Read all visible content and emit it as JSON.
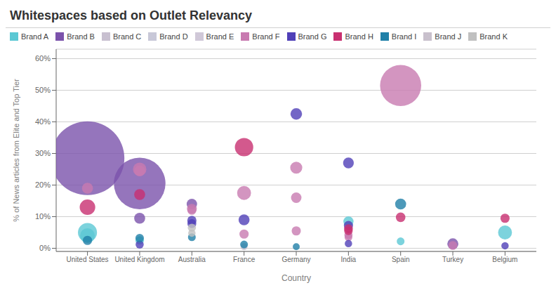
{
  "chart_data": {
    "type": "scatter",
    "title": "Whitespaces based on Outlet Relevancy",
    "x_label": "Country",
    "y_label": "% of News articles from Elite and Top Tier",
    "categories": [
      "United States",
      "United Kingdom",
      "Australia",
      "France",
      "Germany",
      "India",
      "Spain",
      "Turkey",
      "Belgium"
    ],
    "ylim": [
      -0.01,
      0.63
    ],
    "yticks": [
      {
        "value": 0.0,
        "label": "0%"
      },
      {
        "value": 0.1,
        "label": "10%"
      },
      {
        "value": 0.2,
        "label": "20%"
      },
      {
        "value": 0.3,
        "label": "30%"
      },
      {
        "value": 0.4,
        "label": "40%"
      },
      {
        "value": 0.5,
        "label": "50%"
      },
      {
        "value": 0.6,
        "label": "60%"
      }
    ],
    "grid": true,
    "series": [
      {
        "name": "Brand A",
        "color": "#5BC8D4",
        "x": [
          "United States",
          "United States",
          "United Kingdom",
          "India",
          "Spain",
          "Belgium"
        ],
        "values": [
          0.05,
          0.04,
          0.025,
          0.085,
          0.022,
          0.05
        ],
        "sizes": [
          300,
          180,
          60,
          85,
          50,
          160
        ]
      },
      {
        "name": "Brand B",
        "color": "#7B52AB",
        "x": [
          "United States",
          "United Kingdom",
          "United Kingdom",
          "Australia",
          "Turkey"
        ],
        "values": [
          0.285,
          0.205,
          0.095,
          0.14,
          0.014
        ],
        "sizes": [
          4500,
          2200,
          100,
          90,
          100
        ]
      },
      {
        "name": "Brand C",
        "color": "#C8C0D0",
        "x": [
          "France"
        ],
        "values": [
          0.005
        ],
        "sizes": [
          40
        ]
      },
      {
        "name": "Brand D",
        "color": "#C8C8D8",
        "x": [],
        "values": [],
        "sizes": []
      },
      {
        "name": "Brand E",
        "color": "#D0C8D8",
        "x": [],
        "values": [],
        "sizes": []
      },
      {
        "name": "Brand F",
        "color": "#C87AB0",
        "x": [
          "United States",
          "United Kingdom",
          "United Kingdom",
          "Australia",
          "Australia",
          "France",
          "France",
          "Germany",
          "Germany",
          "Germany",
          "India",
          "India",
          "Spain",
          "Turkey"
        ],
        "values": [
          0.19,
          0.25,
          0.245,
          0.125,
          0.12,
          0.175,
          0.045,
          0.255,
          0.16,
          0.055,
          0.042,
          0.035,
          0.515,
          0.009
        ],
        "sizes": [
          100,
          150,
          100,
          80,
          65,
          160,
          70,
          120,
          90,
          70,
          55,
          50,
          1400,
          65
        ]
      },
      {
        "name": "Brand G",
        "color": "#5040B8",
        "x": [
          "United Kingdom",
          "Australia",
          "Australia",
          "France",
          "Germany",
          "India",
          "India",
          "India",
          "Belgium"
        ],
        "values": [
          0.012,
          0.088,
          0.078,
          0.09,
          0.425,
          0.27,
          0.072,
          0.015,
          0.008
        ],
        "sizes": [
          55,
          70,
          65,
          100,
          110,
          95,
          70,
          45,
          45
        ]
      },
      {
        "name": "Brand H",
        "color": "#C83070",
        "x": [
          "United States",
          "United Kingdom",
          "France",
          "India",
          "India",
          "Spain",
          "Belgium"
        ],
        "values": [
          0.13,
          0.17,
          0.32,
          0.062,
          0.055,
          0.098,
          0.095
        ],
        "sizes": [
          200,
          100,
          280,
          65,
          60,
          75,
          70
        ]
      },
      {
        "name": "Brand I",
        "color": "#2080A8",
        "x": [
          "United States",
          "United Kingdom",
          "Australia",
          "France",
          "Germany",
          "Spain"
        ],
        "values": [
          0.025,
          0.032,
          0.035,
          0.012,
          0.005,
          0.14
        ],
        "sizes": [
          70,
          60,
          50,
          50,
          40,
          100
        ]
      },
      {
        "name": "Brand J",
        "color": "#C8C0CC",
        "x": [],
        "values": [],
        "sizes": []
      },
      {
        "name": "Brand K",
        "color": "#C0C0C0",
        "x": [
          "Australia",
          "Australia"
        ],
        "values": [
          0.065,
          0.048
        ],
        "sizes": [
          55,
          45
        ]
      }
    ]
  }
}
